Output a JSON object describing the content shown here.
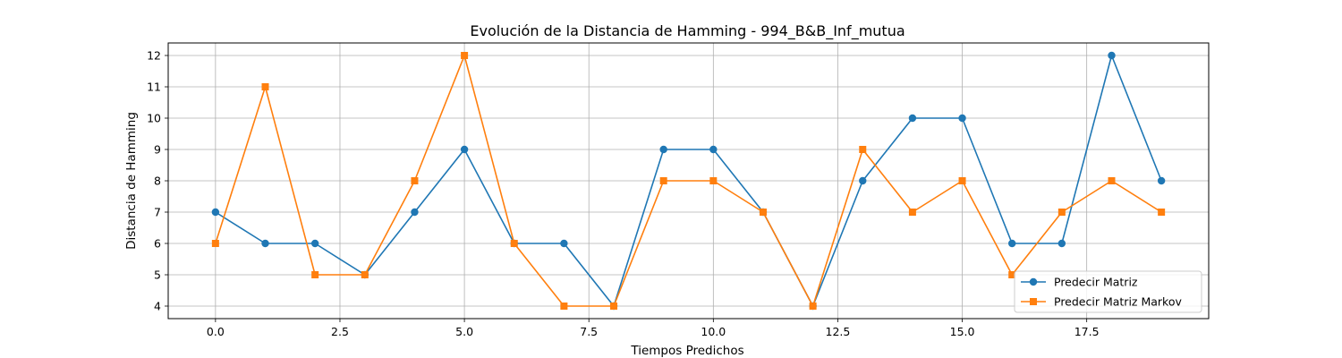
{
  "chart_data": {
    "type": "line",
    "title": "Evolución de la Distancia de Hamming - 994_B&B_Inf_mutua",
    "xlabel": "Tiempos Predichos",
    "ylabel": "Distancia de Hamming",
    "xlim": [
      -0.95,
      19.95
    ],
    "ylim": [
      3.6,
      12.4
    ],
    "xticks": [
      0,
      2.5,
      5,
      7.5,
      10,
      12.5,
      15,
      17.5
    ],
    "xtick_labels": [
      "0.0",
      "2.5",
      "5.0",
      "7.5",
      "10.0",
      "12.5",
      "15.0",
      "17.5"
    ],
    "yticks": [
      4,
      5,
      6,
      7,
      8,
      9,
      10,
      11,
      12
    ],
    "ytick_labels": [
      "4",
      "5",
      "6",
      "7",
      "8",
      "9",
      "10",
      "11",
      "12"
    ],
    "grid": true,
    "legend_position": "bottom-right",
    "x": [
      0,
      1,
      2,
      3,
      4,
      5,
      6,
      7,
      8,
      9,
      10,
      11,
      12,
      13,
      14,
      15,
      16,
      17,
      18,
      19
    ],
    "series": [
      {
        "name": "Predecir Matriz",
        "color": "#1f77b4",
        "marker": "circle",
        "values": [
          7,
          6,
          6,
          5,
          7,
          9,
          6,
          6,
          4,
          9,
          9,
          7,
          4,
          8,
          10,
          10,
          6,
          6,
          12,
          8
        ]
      },
      {
        "name": "Predecir Matriz Markov",
        "color": "#ff7f0e",
        "marker": "square",
        "values": [
          6,
          11,
          5,
          5,
          8,
          12,
          6,
          4,
          4,
          8,
          8,
          7,
          4,
          9,
          7,
          8,
          5,
          7,
          8,
          7
        ]
      }
    ]
  }
}
